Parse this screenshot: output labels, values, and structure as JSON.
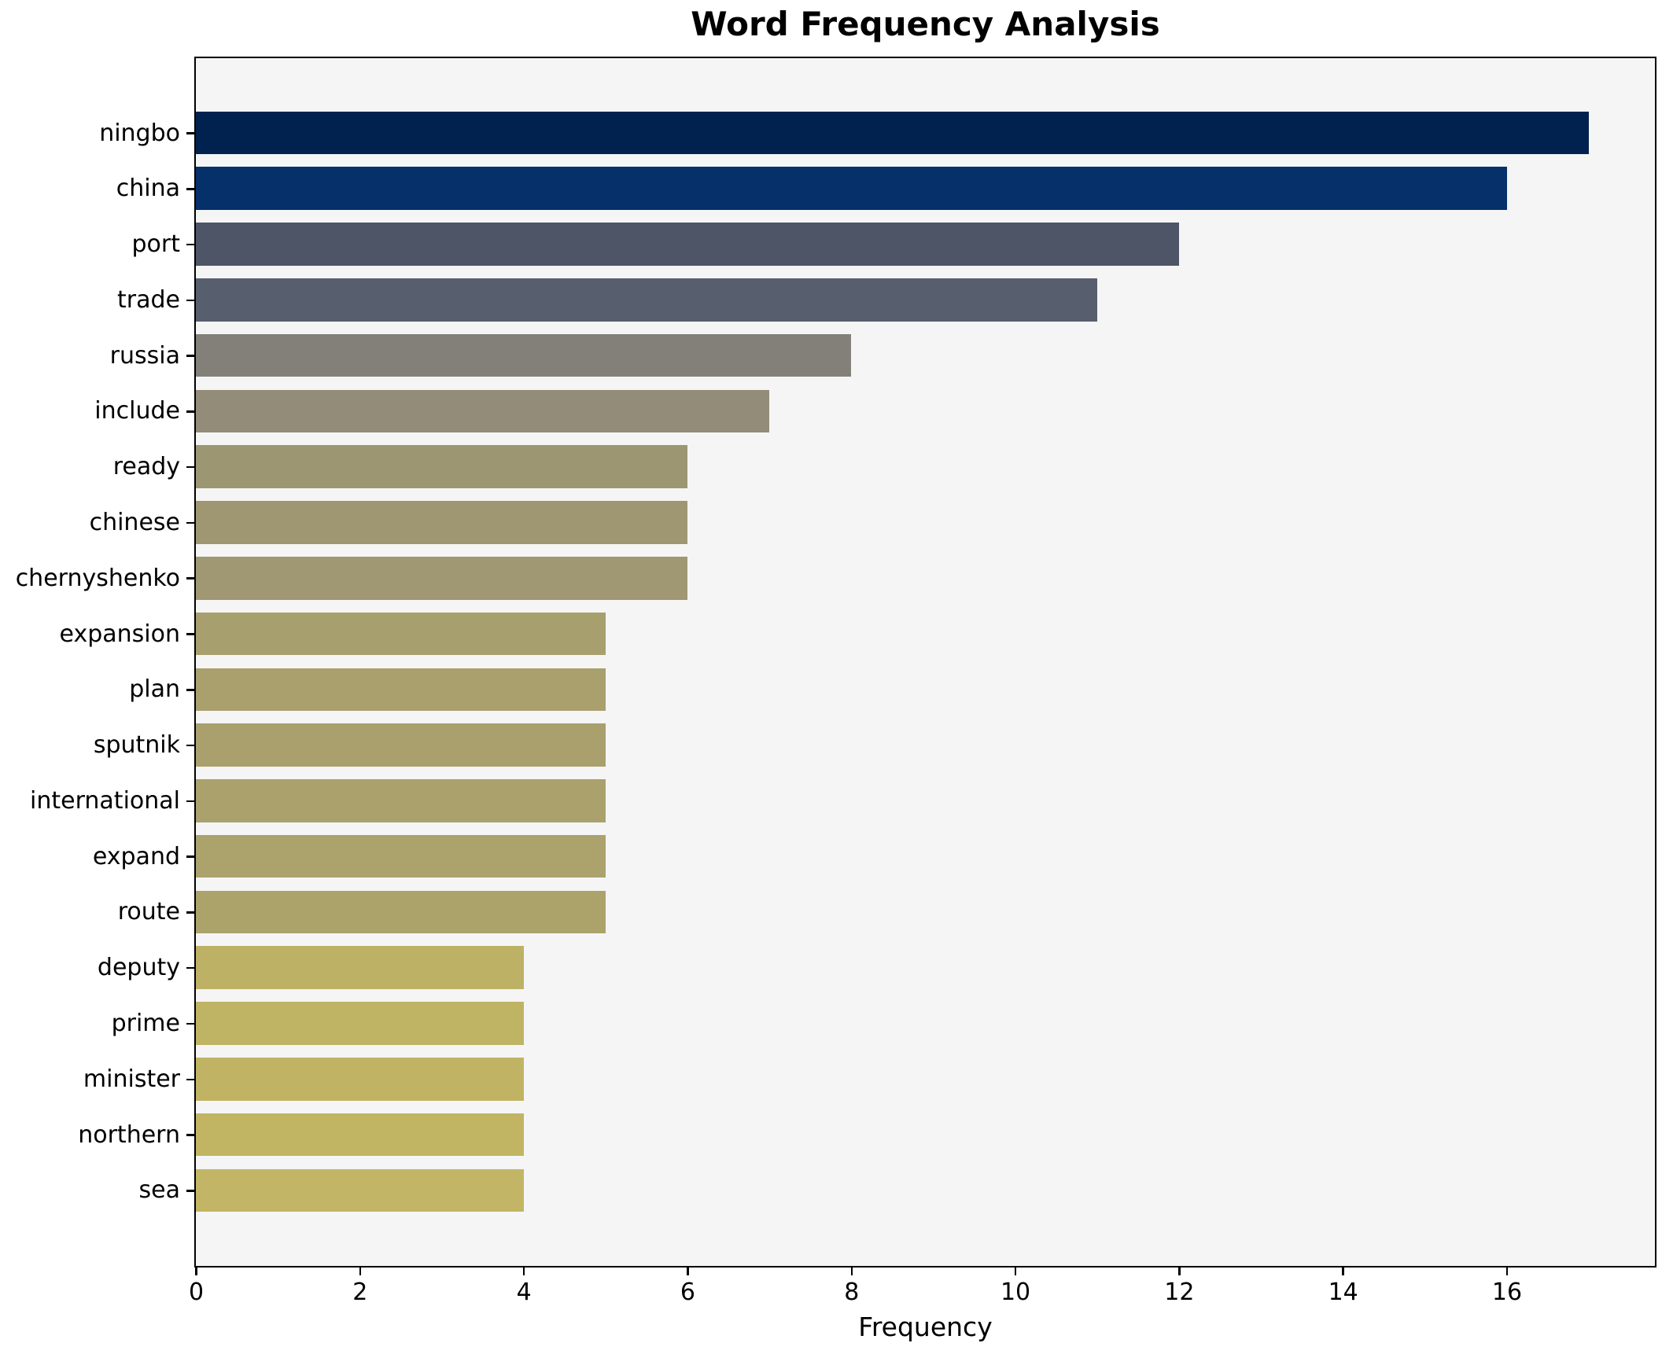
{
  "chart_data": {
    "type": "bar",
    "orientation": "horizontal",
    "title": "Word Frequency Analysis",
    "xlabel": "Frequency",
    "ylabel": "",
    "categories": [
      "ningbo",
      "china",
      "port",
      "trade",
      "russia",
      "include",
      "ready",
      "chinese",
      "chernyshenko",
      "expansion",
      "plan",
      "sputnik",
      "international",
      "expand",
      "route",
      "deputy",
      "prime",
      "minister",
      "northern",
      "sea"
    ],
    "values": [
      17,
      16,
      12,
      11,
      8,
      7,
      6,
      6,
      6,
      5,
      5,
      5,
      5,
      5,
      5,
      4,
      4,
      4,
      4,
      4
    ],
    "bar_colors": [
      "#01224e",
      "#053069",
      "#4d5567",
      "#575e6d",
      "#83807a",
      "#928c78",
      "#9d9672",
      "#9e9772",
      "#9f9872",
      "#a89f6e",
      "#a9a06d",
      "#a9a06d",
      "#aaa16d",
      "#aba26c",
      "#aca36b",
      "#bdb165",
      "#bfb364",
      "#c0b464",
      "#c1b563",
      "#c2b666"
    ],
    "xlim": [
      0,
      17.8
    ],
    "xticks": [
      0,
      2,
      4,
      6,
      8,
      10,
      12,
      14,
      16
    ],
    "grid": false,
    "legend_position": "none",
    "plot_bg": "#f5f5f6",
    "figure_bg": "#ffffff",
    "spine_color": "#000000"
  }
}
